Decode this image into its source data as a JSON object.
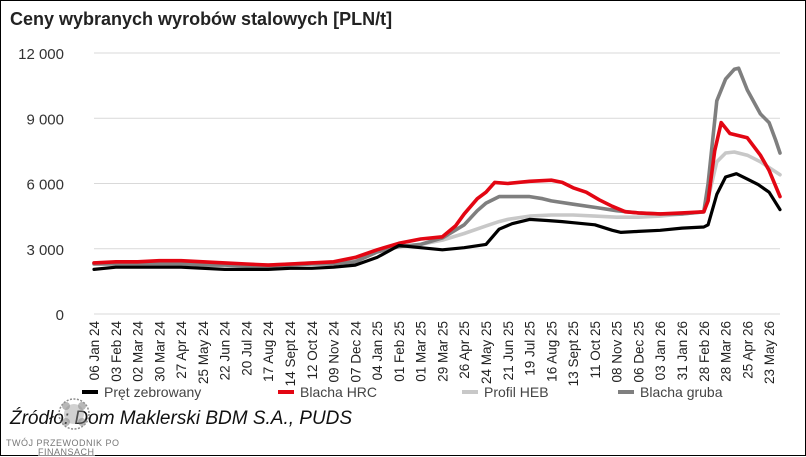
{
  "chart_data": {
    "type": "line",
    "title": "Ceny wybranych wyrobów stalowych [PLN/t]",
    "source": "Źródło: Dom Maklerski BDM S.A., PUDS",
    "ylim": [
      0,
      12000
    ],
    "yticks": [
      0,
      3000,
      6000,
      9000,
      12000
    ],
    "ytick_labels": [
      "0",
      "3 000",
      "6 000",
      "9 000",
      "12 000"
    ],
    "grid": true,
    "legend_position": "bottom",
    "x_labels": [
      "06 Jan 24",
      "03 Feb 24",
      "02 Mar 24",
      "30 Mar 24",
      "27 Apr 24",
      "25 May 24",
      "22 Jun 24",
      "20 Jul 24",
      "17 Aug 24",
      "14 Sept 24",
      "12 Oct 24",
      "09 Nov 24",
      "07 Dec 24",
      "04 Jan 25",
      "01 Feb 25",
      "01 Mar 25",
      "29 Mar 25",
      "26 Apr 25",
      "24 May 25",
      "21 Jun 25",
      "19 Jul 25",
      "16 Aug 25",
      "13 Sept 25",
      "11 Oct 25",
      "08 Nov 25",
      "06 Dec 25",
      "03 Jan 26",
      "31 Jan 26",
      "28 Feb 26",
      "28 Mar 26",
      "25 Apr 26",
      "23 May 26"
    ],
    "x_index_range": [
      0,
      31.5
    ],
    "series": [
      {
        "name": "Pręt zebrowany",
        "color": "#000000",
        "points": [
          [
            0,
            2050
          ],
          [
            1,
            2150
          ],
          [
            2,
            2150
          ],
          [
            3,
            2150
          ],
          [
            4,
            2150
          ],
          [
            5,
            2100
          ],
          [
            6,
            2050
          ],
          [
            7,
            2050
          ],
          [
            8,
            2050
          ],
          [
            9,
            2100
          ],
          [
            10,
            2100
          ],
          [
            11,
            2150
          ],
          [
            12,
            2250
          ],
          [
            13,
            2600
          ],
          [
            14,
            3150
          ],
          [
            15,
            3050
          ],
          [
            16,
            2950
          ],
          [
            17,
            3050
          ],
          [
            18,
            3200
          ],
          [
            18.6,
            3900
          ],
          [
            19.2,
            4150
          ],
          [
            20,
            4350
          ],
          [
            20.8,
            4300
          ],
          [
            21.5,
            4250
          ],
          [
            22,
            4200
          ],
          [
            23,
            4100
          ],
          [
            23.8,
            3850
          ],
          [
            24.2,
            3750
          ],
          [
            25,
            3800
          ],
          [
            26,
            3850
          ],
          [
            27,
            3950
          ],
          [
            28,
            4000
          ],
          [
            28.2,
            4100
          ],
          [
            28.6,
            5500
          ],
          [
            29,
            6300
          ],
          [
            29.5,
            6450
          ],
          [
            30,
            6200
          ],
          [
            30.5,
            5950
          ],
          [
            31,
            5600
          ],
          [
            31.5,
            4800
          ]
        ]
      },
      {
        "name": "Blacha HRC",
        "color": "#e30613",
        "points": [
          [
            0,
            2350
          ],
          [
            1,
            2400
          ],
          [
            2,
            2400
          ],
          [
            3,
            2450
          ],
          [
            4,
            2450
          ],
          [
            5,
            2400
          ],
          [
            6,
            2350
          ],
          [
            7,
            2300
          ],
          [
            8,
            2250
          ],
          [
            9,
            2300
          ],
          [
            10,
            2350
          ],
          [
            11,
            2400
          ],
          [
            12,
            2600
          ],
          [
            13,
            2950
          ],
          [
            14,
            3250
          ],
          [
            15,
            3450
          ],
          [
            16,
            3550
          ],
          [
            16.6,
            4050
          ],
          [
            17,
            4600
          ],
          [
            17.6,
            5300
          ],
          [
            18,
            5600
          ],
          [
            18.4,
            6050
          ],
          [
            19,
            6000
          ],
          [
            20,
            6100
          ],
          [
            21,
            6150
          ],
          [
            21.5,
            6050
          ],
          [
            22,
            5800
          ],
          [
            22.6,
            5600
          ],
          [
            23.2,
            5250
          ],
          [
            23.8,
            4950
          ],
          [
            24.4,
            4700
          ],
          [
            25,
            4650
          ],
          [
            26,
            4600
          ],
          [
            27,
            4650
          ],
          [
            28,
            4700
          ],
          [
            28.2,
            5200
          ],
          [
            28.5,
            7500
          ],
          [
            28.8,
            8800
          ],
          [
            29.2,
            8300
          ],
          [
            30,
            8100
          ],
          [
            30.6,
            7300
          ],
          [
            31,
            6600
          ],
          [
            31.5,
            5400
          ]
        ]
      },
      {
        "name": "Profil HEB",
        "color": "#c8c8c8",
        "points": [
          [
            0,
            2350
          ],
          [
            1,
            2350
          ],
          [
            2,
            2350
          ],
          [
            3,
            2350
          ],
          [
            4,
            2350
          ],
          [
            5,
            2300
          ],
          [
            6,
            2300
          ],
          [
            7,
            2250
          ],
          [
            8,
            2250
          ],
          [
            9,
            2300
          ],
          [
            10,
            2350
          ],
          [
            11,
            2350
          ],
          [
            12,
            2450
          ],
          [
            13,
            2900
          ],
          [
            14,
            3100
          ],
          [
            15,
            3200
          ],
          [
            16,
            3400
          ],
          [
            17,
            3700
          ],
          [
            18,
            4050
          ],
          [
            18.6,
            4250
          ],
          [
            19,
            4350
          ],
          [
            20,
            4500
          ],
          [
            21,
            4550
          ],
          [
            22,
            4550
          ],
          [
            23,
            4500
          ],
          [
            24,
            4450
          ],
          [
            25,
            4450
          ],
          [
            26,
            4500
          ],
          [
            27,
            4600
          ],
          [
            28,
            4700
          ],
          [
            28.2,
            5300
          ],
          [
            28.6,
            7000
          ],
          [
            29,
            7400
          ],
          [
            29.4,
            7450
          ],
          [
            30,
            7300
          ],
          [
            30.6,
            7000
          ],
          [
            31.5,
            6400
          ]
        ]
      },
      {
        "name": "Blacha gruba",
        "color": "#7f7f7f",
        "points": [
          [
            0,
            2300
          ],
          [
            1,
            2300
          ],
          [
            2,
            2300
          ],
          [
            3,
            2300
          ],
          [
            4,
            2300
          ],
          [
            5,
            2250
          ],
          [
            6,
            2250
          ],
          [
            7,
            2200
          ],
          [
            8,
            2200
          ],
          [
            9,
            2250
          ],
          [
            10,
            2300
          ],
          [
            11,
            2300
          ],
          [
            12,
            2400
          ],
          [
            13,
            2850
          ],
          [
            14,
            3100
          ],
          [
            15,
            3200
          ],
          [
            16,
            3500
          ],
          [
            17,
            4100
          ],
          [
            17.6,
            4750
          ],
          [
            18,
            5100
          ],
          [
            18.6,
            5400
          ],
          [
            19,
            5400
          ],
          [
            20,
            5400
          ],
          [
            20.6,
            5300
          ],
          [
            21,
            5200
          ],
          [
            22,
            5050
          ],
          [
            23,
            4900
          ],
          [
            24,
            4750
          ],
          [
            25,
            4650
          ],
          [
            26,
            4600
          ],
          [
            27,
            4600
          ],
          [
            28,
            4700
          ],
          [
            28.2,
            6000
          ],
          [
            28.6,
            9800
          ],
          [
            29,
            10800
          ],
          [
            29.4,
            11250
          ],
          [
            29.6,
            11300
          ],
          [
            30,
            10300
          ],
          [
            30.6,
            9200
          ],
          [
            31,
            8800
          ],
          [
            31.3,
            8000
          ],
          [
            31.5,
            7400
          ]
        ]
      }
    ]
  },
  "watermark": {
    "line1": "TWÓJ PRZEWODNIK PO",
    "line2": "FINANSACH"
  }
}
